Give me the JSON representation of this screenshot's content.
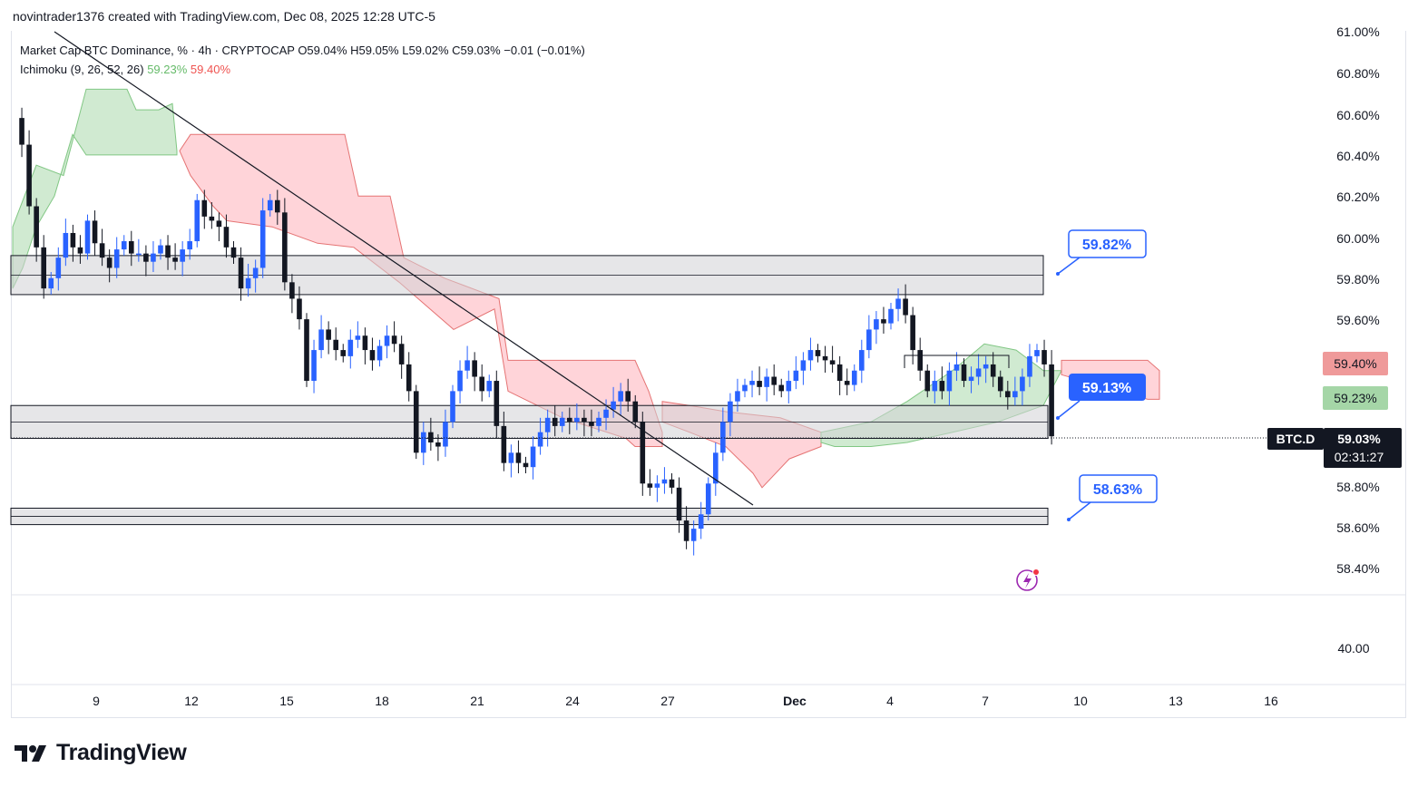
{
  "header": {
    "credit": "novintrader1376 created with TradingView.com, Dec 08, 2025 12:28 UTC-5"
  },
  "legend": {
    "symbol_line": "Market Cap BTC Dominance, % · 4h · CRYPTOCAP  O59.04%  H59.05%  L59.02%  C59.03%  −0.01 (−0.01%)",
    "ichimoku_label": "Ichimoku (9, 26, 52, 26)",
    "ichimoku_a": "59.23%",
    "ichimoku_b": "59.40%"
  },
  "price_axis": {
    "ticks": [
      "61.00%",
      "60.80%",
      "60.60%",
      "60.40%",
      "60.20%",
      "60.00%",
      "59.80%",
      "59.60%",
      "58.80%",
      "58.60%",
      "58.40%"
    ],
    "lower_tick": "40.00",
    "tag_b": "59.40%",
    "tag_a": "59.23%",
    "current_symbol": "BTC.D",
    "current_price": "59.03%",
    "countdown": "02:31:27"
  },
  "time_axis": {
    "ticks": [
      "9",
      "12",
      "15",
      "18",
      "21",
      "24",
      "27",
      "Dec",
      "4",
      "7",
      "10",
      "13",
      "16"
    ]
  },
  "annotations": {
    "callout_top": "59.82%",
    "callout_mid": "59.13%",
    "callout_low": "58.63%"
  },
  "colors": {
    "bull": "#2962ff",
    "bear": "#131722",
    "cloud_green": "#c8e6c9",
    "cloud_red": "#ffcdd2",
    "zone": "#d1d1d6",
    "callout": "#2962ff",
    "tag_b_bg": "#ef9a9a",
    "tag_a_bg": "#a5d6a7"
  },
  "watermark": "TradingView",
  "chart_data": {
    "type": "candlestick",
    "title": "Market Cap BTC Dominance, % · 4h · CRYPTOCAP",
    "ylim": [
      58.3,
      61.0
    ],
    "x_ticks": [
      "9",
      "12",
      "15",
      "18",
      "21",
      "24",
      "27",
      "Dec",
      "4",
      "7",
      "10",
      "13",
      "16"
    ],
    "y_ticks": [
      "61.00%",
      "60.80%",
      "60.60%",
      "60.40%",
      "60.20%",
      "60.00%",
      "59.80%",
      "59.60%",
      "58.80%",
      "58.60%",
      "58.40%"
    ],
    "close_path": [
      [
        0,
        60.58
      ],
      [
        1,
        60.45
      ],
      [
        2,
        60.15
      ],
      [
        3,
        59.95
      ],
      [
        4,
        59.75
      ],
      [
        5,
        59.8
      ],
      [
        6,
        59.9
      ],
      [
        7,
        60.02
      ],
      [
        8,
        59.95
      ],
      [
        9,
        59.92
      ],
      [
        10,
        60.08
      ],
      [
        11,
        59.97
      ],
      [
        12,
        59.9
      ],
      [
        13,
        59.85
      ],
      [
        14,
        59.94
      ],
      [
        15,
        59.98
      ],
      [
        16,
        59.92
      ],
      [
        17,
        59.92
      ],
      [
        18,
        59.88
      ],
      [
        19,
        59.92
      ],
      [
        20,
        59.96
      ],
      [
        21,
        59.9
      ],
      [
        22,
        59.88
      ],
      [
        23,
        59.94
      ],
      [
        24,
        59.98
      ],
      [
        25,
        60.18
      ],
      [
        26,
        60.1
      ],
      [
        27,
        60.08
      ],
      [
        28,
        60.05
      ],
      [
        29,
        59.95
      ],
      [
        30,
        59.9
      ],
      [
        31,
        59.75
      ],
      [
        32,
        59.8
      ],
      [
        33,
        59.85
      ],
      [
        34,
        60.13
      ],
      [
        35,
        60.18
      ],
      [
        36,
        60.12
      ],
      [
        37,
        59.78
      ],
      [
        38,
        59.7
      ],
      [
        39,
        59.6
      ],
      [
        40,
        59.3
      ],
      [
        41,
        59.45
      ],
      [
        42,
        59.55
      ],
      [
        43,
        59.5
      ],
      [
        44,
        59.45
      ],
      [
        45,
        59.42
      ],
      [
        46,
        59.5
      ],
      [
        47,
        59.52
      ],
      [
        48,
        59.45
      ],
      [
        49,
        59.4
      ],
      [
        50,
        59.47
      ],
      [
        51,
        59.52
      ],
      [
        52,
        59.48
      ],
      [
        53,
        59.38
      ],
      [
        54,
        59.25
      ],
      [
        55,
        58.95
      ],
      [
        56,
        59.05
      ],
      [
        57,
        59.0
      ],
      [
        58,
        58.98
      ],
      [
        59,
        59.1
      ],
      [
        60,
        59.25
      ],
      [
        61,
        59.35
      ],
      [
        62,
        59.4
      ],
      [
        63,
        59.32
      ],
      [
        64,
        59.25
      ],
      [
        65,
        59.3
      ],
      [
        66,
        59.08
      ],
      [
        67,
        58.9
      ],
      [
        68,
        58.95
      ],
      [
        69,
        58.9
      ],
      [
        70,
        58.88
      ],
      [
        71,
        58.98
      ],
      [
        72,
        59.05
      ],
      [
        73,
        59.12
      ],
      [
        74,
        59.08
      ],
      [
        75,
        59.12
      ],
      [
        76,
        59.1
      ],
      [
        77,
        59.12
      ],
      [
        78,
        59.1
      ],
      [
        79,
        59.08
      ],
      [
        80,
        59.12
      ],
      [
        81,
        59.16
      ],
      [
        82,
        59.2
      ],
      [
        83,
        59.25
      ],
      [
        84,
        59.2
      ],
      [
        85,
        59.1
      ],
      [
        86,
        58.8
      ],
      [
        87,
        58.78
      ],
      [
        88,
        58.8
      ],
      [
        89,
        58.82
      ],
      [
        90,
        58.78
      ],
      [
        91,
        58.62
      ],
      [
        92,
        58.52
      ],
      [
        93,
        58.58
      ],
      [
        94,
        58.65
      ],
      [
        95,
        58.8
      ],
      [
        96,
        58.95
      ],
      [
        97,
        59.1
      ],
      [
        98,
        59.2
      ],
      [
        99,
        59.25
      ],
      [
        100,
        59.28
      ],
      [
        101,
        59.3
      ],
      [
        102,
        59.27
      ],
      [
        103,
        59.32
      ],
      [
        104,
        59.28
      ],
      [
        105,
        59.25
      ],
      [
        106,
        59.3
      ],
      [
        107,
        59.35
      ],
      [
        108,
        59.4
      ],
      [
        109,
        59.45
      ],
      [
        110,
        59.42
      ],
      [
        111,
        59.4
      ],
      [
        112,
        59.38
      ],
      [
        113,
        59.3
      ],
      [
        114,
        59.28
      ],
      [
        115,
        59.35
      ],
      [
        116,
        59.45
      ],
      [
        117,
        59.55
      ],
      [
        118,
        59.6
      ],
      [
        119,
        59.58
      ],
      [
        120,
        59.65
      ],
      [
        121,
        59.7
      ],
      [
        122,
        59.62
      ],
      [
        123,
        59.45
      ],
      [
        124,
        59.35
      ],
      [
        125,
        59.25
      ],
      [
        126,
        59.3
      ],
      [
        127,
        59.25
      ],
      [
        128,
        59.35
      ],
      [
        129,
        59.38
      ],
      [
        130,
        59.3
      ],
      [
        131,
        59.32
      ],
      [
        132,
        59.36
      ],
      [
        133,
        59.38
      ],
      [
        134,
        59.32
      ],
      [
        135,
        59.25
      ],
      [
        136,
        59.22
      ],
      [
        137,
        59.25
      ],
      [
        138,
        59.32
      ],
      [
        139,
        59.42
      ],
      [
        140,
        59.45
      ],
      [
        141,
        59.38
      ],
      [
        142,
        59.03
      ]
    ],
    "series": [
      {
        "name": "Ichimoku Leading Span A",
        "last": 59.23
      },
      {
        "name": "Ichimoku Leading Span B",
        "last": 59.4
      }
    ],
    "zones": [
      {
        "from": 59.72,
        "to": 59.91
      },
      {
        "from": 59.02,
        "to": 59.18
      },
      {
        "from": 58.6,
        "to": 58.68
      }
    ],
    "current": {
      "symbol": "BTC.D",
      "price": 59.03
    }
  }
}
